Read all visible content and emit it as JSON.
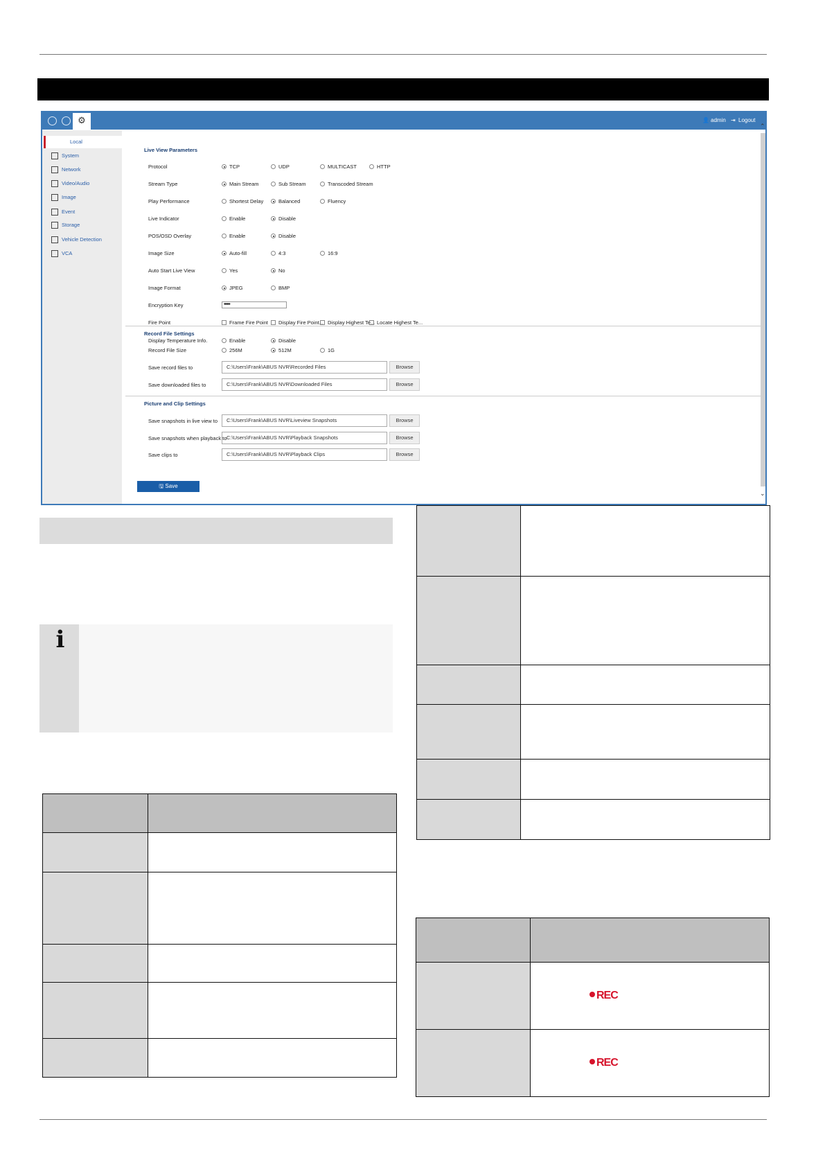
{
  "header": {
    "user": "admin",
    "logout": "Logout",
    "icons": [
      "live-view-icon",
      "playback-icon",
      "configuration-icon"
    ]
  },
  "sidebar": {
    "items": [
      {
        "label": "Local",
        "icon": "local-icon",
        "active": true
      },
      {
        "label": "System",
        "icon": "system-icon"
      },
      {
        "label": "Network",
        "icon": "globe-icon"
      },
      {
        "label": "Video/Audio",
        "icon": "microphone-icon"
      },
      {
        "label": "Image",
        "icon": "image-icon"
      },
      {
        "label": "Event",
        "icon": "calendar-icon"
      },
      {
        "label": "Storage",
        "icon": "floppy-icon"
      },
      {
        "label": "Vehicle Detection",
        "icon": "vehicle-detection-icon"
      },
      {
        "label": "VCA",
        "icon": "vca-icon"
      }
    ]
  },
  "live_view": {
    "title": "Live View Parameters",
    "rows": [
      {
        "label": "Protocol",
        "type": "radio",
        "options": [
          {
            "label": "TCP",
            "checked": true
          },
          {
            "label": "UDP"
          },
          {
            "label": "MULTICAST"
          },
          {
            "label": "HTTP"
          }
        ]
      },
      {
        "label": "Stream Type",
        "type": "radio",
        "options": [
          {
            "label": "Main Stream",
            "checked": true
          },
          {
            "label": "Sub Stream"
          },
          {
            "label": "Transcoded Stream"
          }
        ]
      },
      {
        "label": "Play Performance",
        "type": "radio",
        "options": [
          {
            "label": "Shortest Delay"
          },
          {
            "label": "Balanced",
            "checked": true
          },
          {
            "label": "Fluency"
          }
        ]
      },
      {
        "label": "Live Indicator",
        "type": "radio",
        "options": [
          {
            "label": "Enable"
          },
          {
            "label": "Disable",
            "checked": true
          }
        ]
      },
      {
        "label": "POS/OSD Overlay",
        "type": "radio",
        "options": [
          {
            "label": "Enable"
          },
          {
            "label": "Disable",
            "checked": true
          }
        ]
      },
      {
        "label": "Image Size",
        "type": "radio",
        "options": [
          {
            "label": "Auto-fill",
            "checked": true
          },
          {
            "label": "4:3"
          },
          {
            "label": "16:9"
          }
        ]
      },
      {
        "label": "Auto Start Live View",
        "type": "radio",
        "options": [
          {
            "label": "Yes"
          },
          {
            "label": "No",
            "checked": true
          }
        ]
      },
      {
        "label": "Image Format",
        "type": "radio",
        "options": [
          {
            "label": "JPEG",
            "checked": true
          },
          {
            "label": "BMP"
          }
        ]
      },
      {
        "label": "Encryption Key",
        "type": "password",
        "value": "••••••"
      },
      {
        "label": "Fire Point",
        "type": "checkbox",
        "options": [
          {
            "label": "Frame Fire Point"
          },
          {
            "label": "Display Fire Point..."
          },
          {
            "label": "Display Highest Te..."
          },
          {
            "label": "Locate Highest Te..."
          }
        ]
      },
      {
        "label": "Display Temperature Info.",
        "type": "radio",
        "options": [
          {
            "label": "Enable"
          },
          {
            "label": "Disable",
            "checked": true
          }
        ]
      }
    ]
  },
  "record": {
    "title": "Record File Settings",
    "size": {
      "label": "Record File Size",
      "options": [
        {
          "label": "256M"
        },
        {
          "label": "512M",
          "checked": true
        },
        {
          "label": "1G"
        }
      ]
    },
    "paths": [
      {
        "label": "Save record files to",
        "value": "C:\\Users\\Frank\\ABUS NVR\\Recorded Files",
        "button": "Browse"
      },
      {
        "label": "Save downloaded files to",
        "value": "C:\\Users\\Frank\\ABUS NVR\\Downloaded Files",
        "button": "Browse"
      }
    ]
  },
  "picture": {
    "title": "Picture and Clip Settings",
    "paths": [
      {
        "label": "Save snapshots in live view to",
        "value": "C:\\Users\\Frank\\ABUS NVR\\Liveview Snapshots",
        "button": "Browse"
      },
      {
        "label": "Save snapshots when playback to",
        "value": "C:\\Users\\Frank\\ABUS NVR\\Playback Snapshots",
        "button": "Browse"
      },
      {
        "label": "Save clips to",
        "value": "C:\\Users\\Frank\\ABUS NVR\\Playback Clips",
        "button": "Browse"
      }
    ]
  },
  "save_label": "Save",
  "rec_indicator": "REC",
  "colors": {
    "header": "#3d7ab8",
    "save": "#1a5ea8",
    "rec": "#d6142c"
  }
}
